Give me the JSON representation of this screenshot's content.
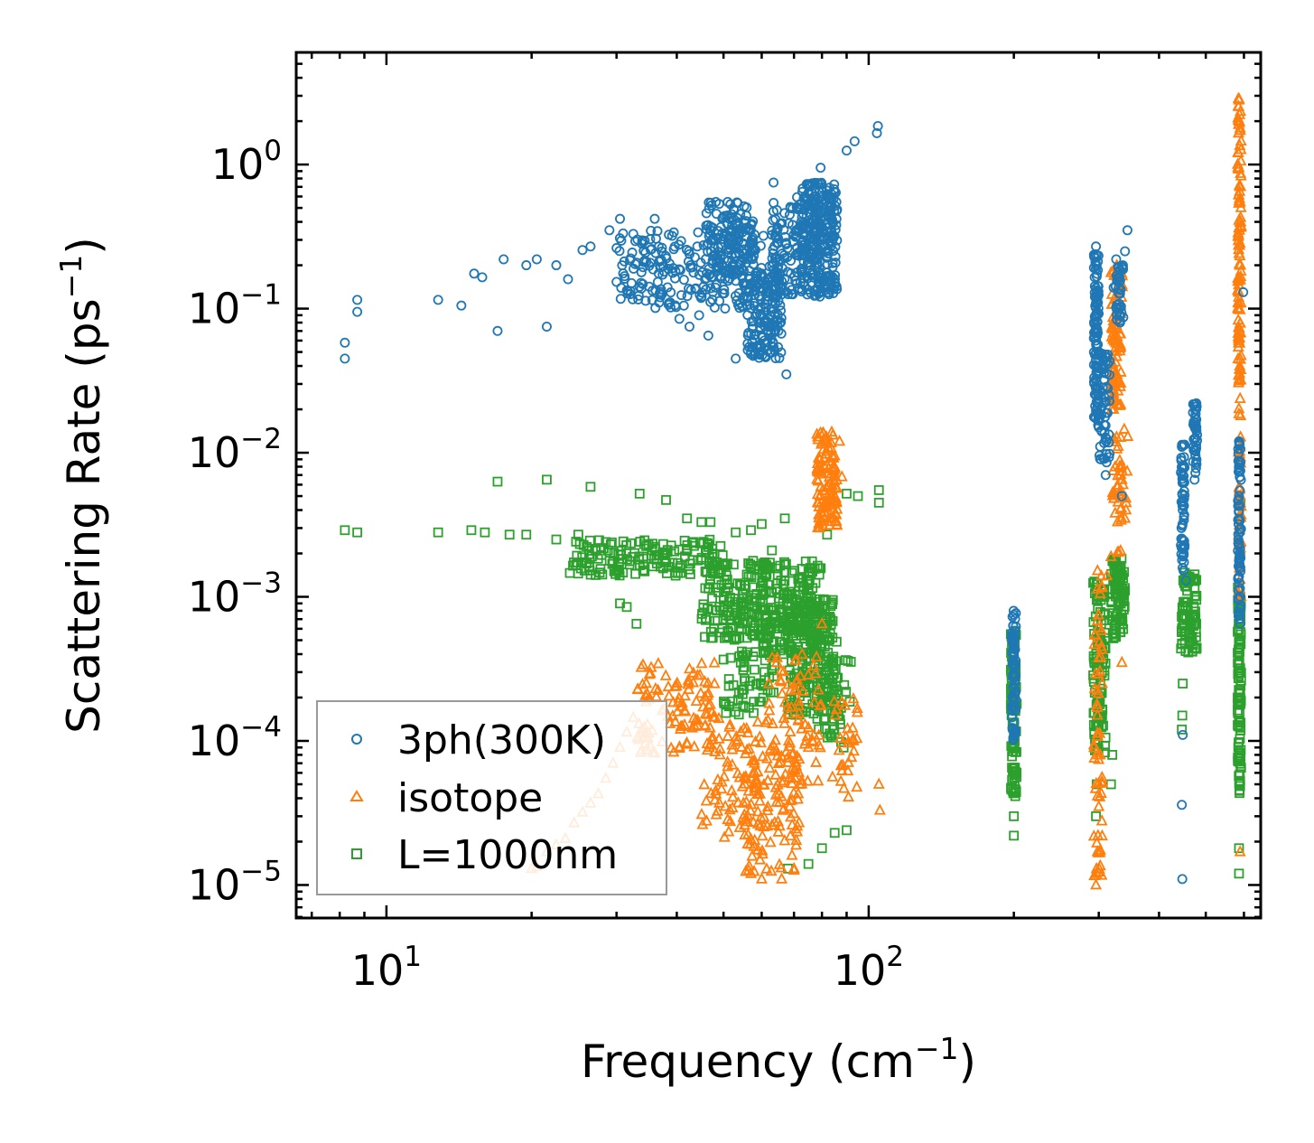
{
  "chart_data": {
    "type": "scatter",
    "xscale": "log",
    "yscale": "log",
    "xlim": [
      6.5,
      650
    ],
    "ylim": [
      5.9e-06,
      6
    ],
    "xlabel": "Frequency (cm",
    "xlabel_sup": "−1",
    "xlabel_end": ")",
    "ylabel": "Scattering Rate (ps",
    "ylabel_sup": "−1",
    "ylabel_end": ")",
    "xticks": [
      {
        "value": 10,
        "base": "10",
        "exp": "1"
      },
      {
        "value": 100,
        "base": "10",
        "exp": "2"
      }
    ],
    "yticks": [
      {
        "value": 1,
        "base": "10",
        "exp": "0"
      },
      {
        "value": 0.1,
        "base": "10",
        "exp": "−1"
      },
      {
        "value": 0.01,
        "base": "10",
        "exp": "−2"
      },
      {
        "value": 0.001,
        "base": "10",
        "exp": "−3"
      },
      {
        "value": 0.0001,
        "base": "10",
        "exp": "−4"
      },
      {
        "value": 1e-05,
        "base": "10",
        "exp": "−5"
      }
    ],
    "legend_position": "lower-left",
    "series": [
      {
        "name": "3ph(300K)",
        "marker": "circle",
        "color": "#1f77b4",
        "points": [
          [
            8.2,
            0.045
          ],
          [
            8.2,
            0.058
          ],
          [
            8.7,
            0.095
          ],
          [
            8.7,
            0.115
          ],
          [
            12.8,
            0.115
          ],
          [
            14.3,
            0.105
          ],
          [
            15.2,
            0.175
          ],
          [
            15.8,
            0.165
          ],
          [
            17.0,
            0.07
          ],
          [
            17.5,
            0.22
          ],
          [
            19.5,
            0.2
          ],
          [
            20.5,
            0.22
          ],
          [
            21.5,
            0.075
          ],
          [
            22.5,
            0.2
          ],
          [
            23.8,
            0.16
          ],
          [
            25.5,
            0.255
          ],
          [
            26.5,
            0.27
          ],
          [
            29.0,
            0.35
          ],
          [
            30.5,
            0.42
          ],
          [
            32.5,
            0.33
          ],
          [
            36.0,
            0.42
          ],
          [
            40.5,
            0.085
          ],
          [
            42.5,
            0.075
          ],
          [
            44.5,
            0.09
          ],
          [
            46.5,
            0.065
          ],
          [
            48.2,
            0.55
          ],
          [
            51.0,
            0.55
          ],
          [
            53.0,
            0.045
          ],
          [
            56.5,
            0.36
          ],
          [
            60.5,
            0.32
          ],
          [
            63.5,
            0.75
          ],
          [
            67.5,
            0.035
          ],
          [
            72.0,
            0.5
          ],
          [
            79.5,
            0.95
          ],
          [
            90.0,
            1.25
          ],
          [
            93.5,
            1.45
          ],
          [
            104.0,
            1.65
          ],
          [
            104.5,
            1.85
          ],
          [
            200.0,
            0.00028
          ],
          [
            200.0,
            0.0004
          ],
          [
            200.0,
            0.00055
          ],
          [
            200.0,
            0.00075
          ],
          [
            200.0,
            0.0002
          ],
          [
            296.0,
            0.025
          ],
          [
            296.0,
            0.06
          ],
          [
            296.0,
            0.12
          ],
          [
            296.0,
            0.27
          ],
          [
            300.0,
            0.015
          ],
          [
            303.0,
            0.009
          ],
          [
            310.0,
            0.007
          ],
          [
            322.0,
            0.14
          ],
          [
            326.0,
            0.22
          ],
          [
            335.0,
            0.005
          ],
          [
            340.0,
            0.25
          ],
          [
            344.0,
            0.35
          ],
          [
            446.0,
            0.011
          ],
          [
            446.0,
            0.008
          ],
          [
            448.0,
            0.004
          ],
          [
            450.0,
            0.002
          ],
          [
            455.0,
            0.0013
          ],
          [
            448.0,
            0.00011
          ],
          [
            446.0,
            3.6e-05
          ],
          [
            447.0,
            1.1e-05
          ],
          [
            478.0,
            0.022
          ],
          [
            478.0,
            0.015
          ],
          [
            476.0,
            0.0095
          ],
          [
            474.0,
            0.0065
          ],
          [
            586.0,
            0.012
          ],
          [
            586.0,
            0.005
          ],
          [
            588.0,
            0.002
          ],
          [
            590.0,
            0.00065
          ],
          [
            590.0,
            0.0015
          ],
          [
            598.0,
            0.13
          ]
        ],
        "clusters": [
          {
            "x": [
              30,
              60
            ],
            "y": [
              0.1,
              0.35
            ],
            "n": 230
          },
          {
            "x": [
              46,
              58
            ],
            "y": [
              0.15,
              0.55
            ],
            "n": 130
          },
          {
            "x": [
              56,
              66
            ],
            "y": [
              0.045,
              0.2
            ],
            "n": 160
          },
          {
            "x": [
              63,
              80
            ],
            "y": [
              0.12,
              0.6
            ],
            "n": 150
          },
          {
            "x": [
              72,
              86
            ],
            "y": [
              0.12,
              0.75
            ],
            "n": 230
          },
          {
            "x": [
              198,
              202
            ],
            "y": [
              0.0001,
              0.0008
            ],
            "n": 70
          },
          {
            "x": [
              293,
              300
            ],
            "y": [
              0.015,
              0.25
            ],
            "n": 110
          },
          {
            "x": [
              300,
              316
            ],
            "y": [
              0.008,
              0.05
            ],
            "n": 60
          },
          {
            "x": [
              325,
              338
            ],
            "y": [
              0.08,
              0.2
            ],
            "n": 40
          },
          {
            "x": [
              444,
              452
            ],
            "y": [
              0.0015,
              0.012
            ],
            "n": 60
          },
          {
            "x": [
              470,
              480
            ],
            "y": [
              0.007,
              0.023
            ],
            "n": 40
          },
          {
            "x": [
              583,
              592
            ],
            "y": [
              0.0007,
              0.012
            ],
            "n": 70
          }
        ]
      },
      {
        "name": "isotope",
        "marker": "triangle",
        "color": "#ff7f0e",
        "points": [
          [
            20.0,
            1.3e-05
          ],
          [
            20.5,
            1.35e-05
          ],
          [
            21.5,
            1.7e-05
          ],
          [
            22.5,
            1.9e-05
          ],
          [
            23.5,
            2.1e-05
          ],
          [
            24.5,
            2.7e-05
          ],
          [
            25.5,
            3.2e-05
          ],
          [
            26.5,
            3.7e-05
          ],
          [
            27.5,
            4.3e-05
          ],
          [
            28.5,
            5.5e-05
          ],
          [
            29.5,
            7e-05
          ],
          [
            30.5,
            9e-05
          ],
          [
            31.5,
            0.000115
          ],
          [
            32.5,
            0.000145
          ],
          [
            49.0,
            3.7e-05
          ],
          [
            52.0,
            4.5e-05
          ],
          [
            54.0,
            2.5e-05
          ],
          [
            57.0,
            1.2e-05
          ],
          [
            60.0,
            1.1e-05
          ],
          [
            66.0,
            1.1e-05
          ],
          [
            70.0,
            1.3e-05
          ],
          [
            75.0,
            9e-05
          ],
          [
            77.0,
            0.00011
          ],
          [
            80.0,
            0.00065
          ],
          [
            83.0,
            0.0045
          ],
          [
            85.0,
            0.0095
          ],
          [
            87.0,
            0.012
          ],
          [
            88.0,
            0.0068
          ],
          [
            93.0,
            0.0001
          ],
          [
            105.0,
            5e-05
          ],
          [
            105.5,
            3.3e-05
          ],
          [
            296.0,
            1e-05
          ],
          [
            297.0,
            1.2e-05
          ],
          [
            298.0,
            1.7e-05
          ],
          [
            300.0,
            3.5e-05
          ],
          [
            302.0,
            8e-05
          ],
          [
            305.0,
            0.00025
          ],
          [
            312.0,
            0.0014
          ],
          [
            318.0,
            0.0019
          ],
          [
            322.0,
            0.02
          ],
          [
            325.0,
            0.035
          ],
          [
            327.0,
            0.2
          ],
          [
            330.0,
            0.18
          ],
          [
            335.0,
            0.0065
          ],
          [
            340.0,
            0.0035
          ],
          [
            342.0,
            0.0045
          ],
          [
            335.0,
            0.00035
          ],
          [
            586.0,
            2.8
          ],
          [
            587.0,
            2.0
          ],
          [
            586.0,
            0.95
          ],
          [
            587.0,
            0.35
          ],
          [
            588.0,
            0.04
          ],
          [
            588.0,
            0.011
          ],
          [
            590.0,
            0.0045
          ],
          [
            585.0,
            0.0025
          ],
          [
            589.0,
            0.001
          ],
          [
            589.0,
            1.7e-05
          ]
        ],
        "clusters": [
          {
            "x": [
              33,
              48
            ],
            "y": [
              8e-05,
              0.00035
            ],
            "n": 110
          },
          {
            "x": [
              45,
              62
            ],
            "y": [
              2e-05,
              0.00015
            ],
            "n": 90
          },
          {
            "x": [
              55,
              72
            ],
            "y": [
              1.2e-05,
              8e-05
            ],
            "n": 90
          },
          {
            "x": [
              62,
              80
            ],
            "y": [
              5e-05,
              0.0004
            ],
            "n": 80
          },
          {
            "x": [
              78,
              86
            ],
            "y": [
              0.003,
              0.014
            ],
            "n": 120
          },
          {
            "x": [
              84,
              95
            ],
            "y": [
              4e-05,
              0.0002
            ],
            "n": 30
          },
          {
            "x": [
              293,
              305
            ],
            "y": [
              1e-05,
              0.002
            ],
            "n": 60
          },
          {
            "x": [
              318,
              336
            ],
            "y": [
              0.02,
              0.2
            ],
            "n": 90
          },
          {
            "x": [
              320,
              345
            ],
            "y": [
              0.002,
              0.015
            ],
            "n": 40
          },
          {
            "x": [
              582,
              592
            ],
            "y": [
              0.03,
              3.0
            ],
            "n": 110
          },
          {
            "x": [
              584,
              592
            ],
            "y": [
              0.001,
              0.03
            ],
            "n": 40
          }
        ]
      },
      {
        "name": "L=1000nm",
        "marker": "square",
        "color": "#2ca02c",
        "points": [
          [
            8.2,
            0.0029
          ],
          [
            8.7,
            0.0028
          ],
          [
            12.8,
            0.0028
          ],
          [
            15.0,
            0.0029
          ],
          [
            16.0,
            0.0028
          ],
          [
            17.0,
            0.0063
          ],
          [
            18.0,
            0.0027
          ],
          [
            19.5,
            0.0027
          ],
          [
            21.5,
            0.0065
          ],
          [
            22.5,
            0.0025
          ],
          [
            25.0,
            0.0027
          ],
          [
            26.5,
            0.0058
          ],
          [
            28.5,
            0.0024
          ],
          [
            30.5,
            0.0009
          ],
          [
            31.5,
            0.00085
          ],
          [
            33.0,
            0.00065
          ],
          [
            33.5,
            0.0052
          ],
          [
            38.0,
            0.0047
          ],
          [
            42.0,
            0.0035
          ],
          [
            45.0,
            0.0033
          ],
          [
            47.0,
            0.0033
          ],
          [
            50.0,
            0.0007
          ],
          [
            53.0,
            0.0028
          ],
          [
            57.0,
            0.0029
          ],
          [
            60.0,
            0.0032
          ],
          [
            63.0,
            0.0021
          ],
          [
            67.0,
            0.0035
          ],
          [
            75.0,
            0.0015
          ],
          [
            82.0,
            0.0027
          ],
          [
            90.0,
            0.0052
          ],
          [
            95.0,
            0.005
          ],
          [
            105.0,
            0.0055
          ],
          [
            105.0,
            0.0045
          ],
          [
            80.0,
            1.8e-05
          ],
          [
            85.0,
            2.3e-05
          ],
          [
            90.0,
            2.4e-05
          ],
          [
            75.0,
            1.4e-05
          ],
          [
            68.0,
            1.3e-05
          ],
          [
            200.0,
            2.2e-05
          ],
          [
            200.0,
            5.5e-05
          ],
          [
            200.0,
            3e-05
          ],
          [
            296.0,
            3e-05
          ],
          [
            297.0,
            5e-05
          ],
          [
            318.0,
            5e-05
          ],
          [
            320.0,
            8e-05
          ],
          [
            446.0,
            0.00012
          ],
          [
            447.0,
            0.00015
          ],
          [
            448.0,
            0.00025
          ],
          [
            586.0,
            1.2e-05
          ],
          [
            586.0,
            1.8e-05
          ],
          [
            588.0,
            4.5e-05
          ],
          [
            590.0,
            0.0045
          ]
        ],
        "clusters": [
          {
            "x": [
              24,
              50
            ],
            "y": [
              0.0014,
              0.0025
            ],
            "n": 150
          },
          {
            "x": [
              45,
              62
            ],
            "y": [
              0.0005,
              0.0018
            ],
            "n": 140
          },
          {
            "x": [
              50,
              64
            ],
            "y": [
              0.00015,
              0.0008
            ],
            "n": 90
          },
          {
            "x": [
              60,
              80
            ],
            "y": [
              0.0004,
              0.0018
            ],
            "n": 180
          },
          {
            "x": [
              68,
              86
            ],
            "y": [
              0.00015,
              0.001
            ],
            "n": 220
          },
          {
            "x": [
              78,
              92
            ],
            "y": [
              8e-05,
              0.0004
            ],
            "n": 50
          },
          {
            "x": [
              197,
              203
            ],
            "y": [
              4e-05,
              0.0006
            ],
            "n": 90
          },
          {
            "x": [
              292,
              310
            ],
            "y": [
              8e-05,
              0.0013
            ],
            "n": 110
          },
          {
            "x": [
              318,
              340
            ],
            "y": [
              0.0005,
              0.0019
            ],
            "n": 90
          },
          {
            "x": [
              444,
              480
            ],
            "y": [
              0.0004,
              0.0015
            ],
            "n": 80
          },
          {
            "x": [
              582,
              592
            ],
            "y": [
              4e-05,
              0.0012
            ],
            "n": 100
          }
        ]
      }
    ]
  }
}
